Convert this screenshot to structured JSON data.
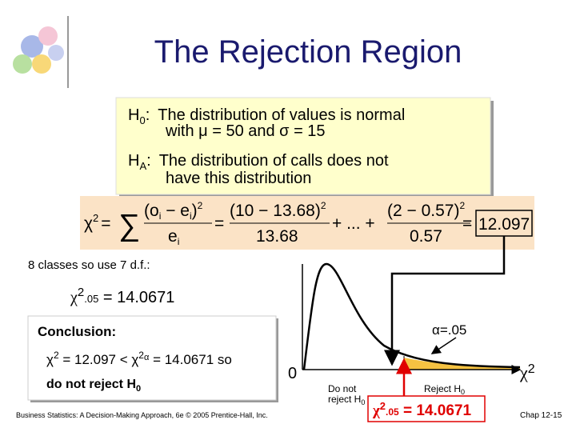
{
  "title": "The Rejection Region",
  "hypotheses": {
    "h0": {
      "symbol": "H",
      "sub": "0",
      "colon": ":",
      "line1": "The distribution of values is normal",
      "line2": "with μ = 50 and σ = 15"
    },
    "ha": {
      "symbol": "H",
      "sub": "A",
      "colon": ":",
      "line1": "The distribution of calls does not",
      "line2": "have this distribution"
    }
  },
  "formula": {
    "chi": "χ",
    "chi_sup": "2",
    "eq": "=",
    "sum": "∑",
    "term1": {
      "num": [
        "(o",
        "i",
        " − e",
        "i",
        ")",
        "2"
      ],
      "den": [
        "e",
        "i"
      ]
    },
    "term2": {
      "num": [
        "(10 − 13.68)",
        "2"
      ],
      "den": "13.68"
    },
    "dots": "+ ... +",
    "term3": {
      "num": [
        "(2 − 0.57)",
        "2"
      ],
      "den": "0.57"
    },
    "result": "12.097"
  },
  "df_note": "8 classes so use 7 d.f.:",
  "critical": {
    "chi": "χ",
    "sup": "2",
    "sub": ".05",
    "rest": " = 14.0671"
  },
  "conclusion": {
    "heading": "Conclusion:",
    "line1": [
      "χ",
      "2",
      " = 12.097 < χ",
      "2",
      "α",
      " = 14.0671 so"
    ],
    "line2": [
      "do not reject H",
      "0"
    ]
  },
  "chart": {
    "origin": "0",
    "x_label": [
      "χ",
      "2"
    ],
    "alpha": "α=.05",
    "accept": [
      "Do not",
      "reject H",
      "0"
    ],
    "reject": [
      "Reject H",
      "0"
    ],
    "critical": [
      "χ",
      "2",
      ".05",
      " = 14.0671"
    ]
  },
  "footer": {
    "source": "Business Statistics: A Decision-Making Approach, 6e © 2005 Prentice-Hall, Inc.",
    "page": "Chap 12-15"
  }
}
